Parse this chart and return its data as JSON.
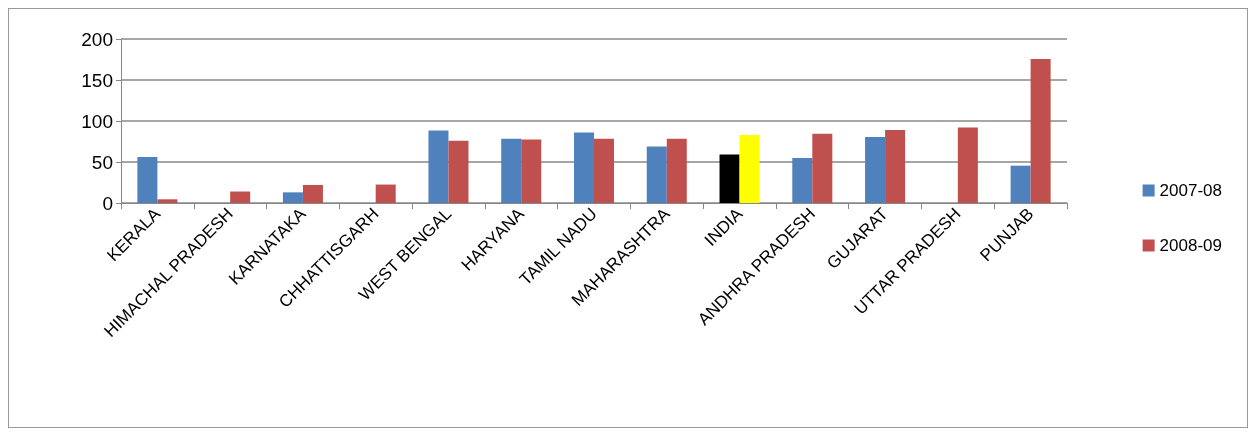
{
  "chart_data": {
    "type": "bar",
    "categories": [
      "KERALA",
      "HIMACHAL PRADESH",
      "KARNATAKA",
      "CHHATTISGARH",
      "WEST BENGAL",
      "HARYANA",
      "TAMIL NADU",
      "MAHARASHTRA",
      "INDIA",
      "ANDHRA PRADESH",
      "GUJARAT",
      "UTTAR PRADESH",
      "PUNJAB"
    ],
    "series": [
      {
        "name": "2007-08",
        "color": "#4f81bd",
        "colors": [
          "#4f81bd",
          "#4f81bd",
          "#4f81bd",
          "#4f81bd",
          "#4f81bd",
          "#4f81bd",
          "#4f81bd",
          "#4f81bd",
          "#000000",
          "#4f81bd",
          "#4f81bd",
          "#4f81bd",
          "#4f81bd"
        ],
        "values": [
          56,
          null,
          13,
          null,
          88.5,
          78.5,
          86,
          69,
          59,
          55,
          80.5,
          null,
          45.5
        ]
      },
      {
        "name": "2008-09",
        "color": "#c0504d",
        "colors": [
          "#c0504d",
          "#c0504d",
          "#c0504d",
          "#c0504d",
          "#c0504d",
          "#c0504d",
          "#c0504d",
          "#c0504d",
          "#ffff00",
          "#c0504d",
          "#c0504d",
          "#c0504d",
          "#c0504d"
        ],
        "values": [
          4.5,
          14,
          22,
          22.5,
          76,
          77.5,
          78.5,
          78.5,
          83,
          84.5,
          89,
          92,
          175.5
        ]
      }
    ],
    "ylim": [
      0,
      200
    ],
    "yticks": [
      0,
      50,
      100,
      150,
      200
    ],
    "grid": "y",
    "legend": "right"
  }
}
